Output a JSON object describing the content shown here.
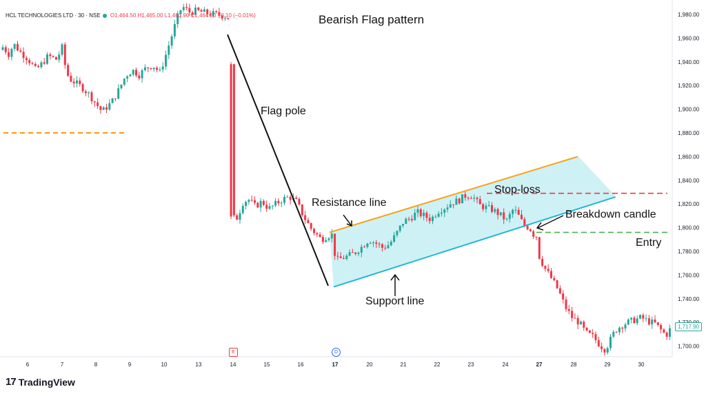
{
  "legend": {
    "symbol": "HCL TECHNOLOGIES LTD · 30 · NSE",
    "open": "O1,464.50",
    "high": "H1,465.00",
    "low": "L1,463.90",
    "close": "C1,464.50",
    "change": "−0.10 (−0.01%)"
  },
  "brand": {
    "name": "TradingView",
    "logo_icon": "tradingview-logo-icon"
  },
  "last_price_tag": "1,717.90",
  "markers": {
    "earnings": "E",
    "dividend": "D"
  },
  "colors": {
    "up": "#26a69a",
    "down": "#f23645",
    "resistance": "#f7a21b",
    "support": "#22b8d4",
    "channel_fill": "#c6eef3",
    "stoploss": "#f23645",
    "entry": "#4caf50",
    "orange_dash": "#ff9800"
  },
  "chart_data": {
    "type": "candlestick",
    "title": "Bearish Flag pattern",
    "y_axis": {
      "ticks": [
        "1,980.00",
        "1,960.00",
        "1,940.00",
        "1,920.00",
        "1,900.00",
        "1,880.00",
        "1,860.00",
        "1,840.00",
        "1,820.00",
        "1,800.00",
        "1,780.00",
        "1,760.00",
        "1,740.00",
        "1,720.00",
        "1,700.00"
      ],
      "range": [
        1692,
        1992
      ]
    },
    "x_axis": {
      "ticks": [
        "6",
        "7",
        "8",
        "9",
        "10",
        "13",
        "14",
        "15",
        "16",
        "17",
        "20",
        "21",
        "22",
        "23",
        "24",
        "27",
        "28",
        "29",
        "30"
      ],
      "bold_ticks": [
        "17",
        "27"
      ]
    },
    "price_path": [
      [
        0,
        1950
      ],
      [
        5,
        1953
      ],
      [
        12,
        1946
      ],
      [
        20,
        1955
      ],
      [
        30,
        1948
      ],
      [
        40,
        1943
      ],
      [
        52,
        1933
      ],
      [
        60,
        1938
      ],
      [
        70,
        1945
      ],
      [
        82,
        1942
      ],
      [
        90,
        1952
      ],
      [
        95,
        1935
      ],
      [
        100,
        1926
      ],
      [
        110,
        1922
      ],
      [
        120,
        1918
      ],
      [
        130,
        1912
      ],
      [
        140,
        1904
      ],
      [
        148,
        1898
      ],
      [
        155,
        1902
      ],
      [
        162,
        1906
      ],
      [
        172,
        1916
      ],
      [
        182,
        1928
      ],
      [
        192,
        1933
      ],
      [
        202,
        1929
      ],
      [
        212,
        1935
      ],
      [
        222,
        1937
      ],
      [
        232,
        1931
      ],
      [
        240,
        1945
      ],
      [
        248,
        1960
      ],
      [
        256,
        1975
      ],
      [
        264,
        1987
      ],
      [
        275,
        1982
      ],
      [
        285,
        1983
      ],
      [
        300,
        1981
      ],
      [
        315,
        1980
      ],
      [
        330,
        1978
      ],
      [
        335,
        1972
      ],
      [
        338,
        1938
      ],
      [
        338,
        1815
      ],
      [
        344,
        1808
      ],
      [
        352,
        1821
      ],
      [
        360,
        1824
      ],
      [
        370,
        1818
      ],
      [
        380,
        1822
      ],
      [
        390,
        1816
      ],
      [
        400,
        1820
      ],
      [
        410,
        1824
      ],
      [
        420,
        1826
      ],
      [
        430,
        1822
      ],
      [
        440,
        1810
      ],
      [
        450,
        1800
      ],
      [
        458,
        1795
      ],
      [
        466,
        1790
      ],
      [
        474,
        1793
      ],
      [
        482,
        1794
      ],
      [
        487,
        1772
      ],
      [
        495,
        1774
      ],
      [
        505,
        1776
      ],
      [
        515,
        1779
      ],
      [
        525,
        1784
      ],
      [
        535,
        1790
      ],
      [
        545,
        1787
      ],
      [
        555,
        1783
      ],
      [
        565,
        1786
      ],
      [
        575,
        1795
      ],
      [
        585,
        1805
      ],
      [
        595,
        1808
      ],
      [
        605,
        1813
      ],
      [
        615,
        1810
      ],
      [
        625,
        1807
      ],
      [
        635,
        1814
      ],
      [
        645,
        1817
      ],
      [
        655,
        1821
      ],
      [
        665,
        1823
      ],
      [
        675,
        1827
      ],
      [
        685,
        1827
      ],
      [
        695,
        1819
      ],
      [
        705,
        1817
      ],
      [
        715,
        1815
      ],
      [
        725,
        1811
      ],
      [
        735,
        1806
      ],
      [
        745,
        1816
      ],
      [
        752,
        1810
      ],
      [
        760,
        1802
      ],
      [
        768,
        1800
      ],
      [
        774,
        1794
      ],
      [
        778,
        1793
      ],
      [
        782,
        1776
      ],
      [
        790,
        1766
      ],
      [
        800,
        1757
      ],
      [
        810,
        1747
      ],
      [
        820,
        1733
      ],
      [
        830,
        1724
      ],
      [
        840,
        1720
      ],
      [
        850,
        1711
      ],
      [
        860,
        1708
      ],
      [
        870,
        1701
      ],
      [
        878,
        1697
      ],
      [
        885,
        1705
      ],
      [
        892,
        1713
      ],
      [
        900,
        1717
      ],
      [
        910,
        1720
      ],
      [
        920,
        1722
      ],
      [
        930,
        1724
      ],
      [
        940,
        1721
      ],
      [
        950,
        1719
      ],
      [
        958,
        1714
      ],
      [
        966,
        1709
      ],
      [
        974,
        1716
      ]
    ],
    "annotations": [
      {
        "name": "title",
        "text": "Bearish Flag pattern"
      },
      {
        "name": "flag-pole-label",
        "text": "Flag pole"
      },
      {
        "name": "resistance-label",
        "text": "Resistance line"
      },
      {
        "name": "support-label",
        "text": "Support line"
      },
      {
        "name": "stoploss-label",
        "text": "Stop-loss"
      },
      {
        "name": "breakdown-label",
        "text": "Breakdown candle"
      },
      {
        "name": "entry-label",
        "text": "Entry"
      }
    ],
    "levels": {
      "orange_dash": 1880,
      "stop_loss": 1829,
      "entry": 1796
    },
    "flag_pole": {
      "from": [
        330,
        1963
      ],
      "to": [
        476,
        1751
      ]
    },
    "channel": {
      "resistance": {
        "from": [
          478,
          1796
        ],
        "to": [
          838,
          1860
        ]
      },
      "support": {
        "from": [
          484,
          1750
        ],
        "to": [
          893,
          1826
        ]
      }
    }
  }
}
